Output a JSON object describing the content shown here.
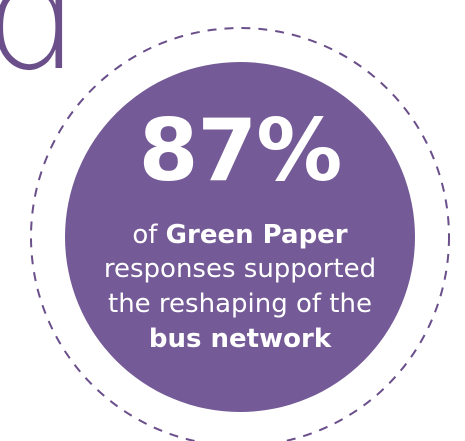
{
  "headline": {
    "number": "87%",
    "line1_prefix": "of ",
    "line1_bold": "Green Paper",
    "line2": "responses supported",
    "line3": "the reshaping of the",
    "line4_bold": "bus network"
  },
  "cropped_letter": "d",
  "colors": {
    "circle_fill": "#745a96",
    "dashed_ring": "#6a4f8b",
    "text": "#ffffff",
    "background": "#ffffff"
  }
}
